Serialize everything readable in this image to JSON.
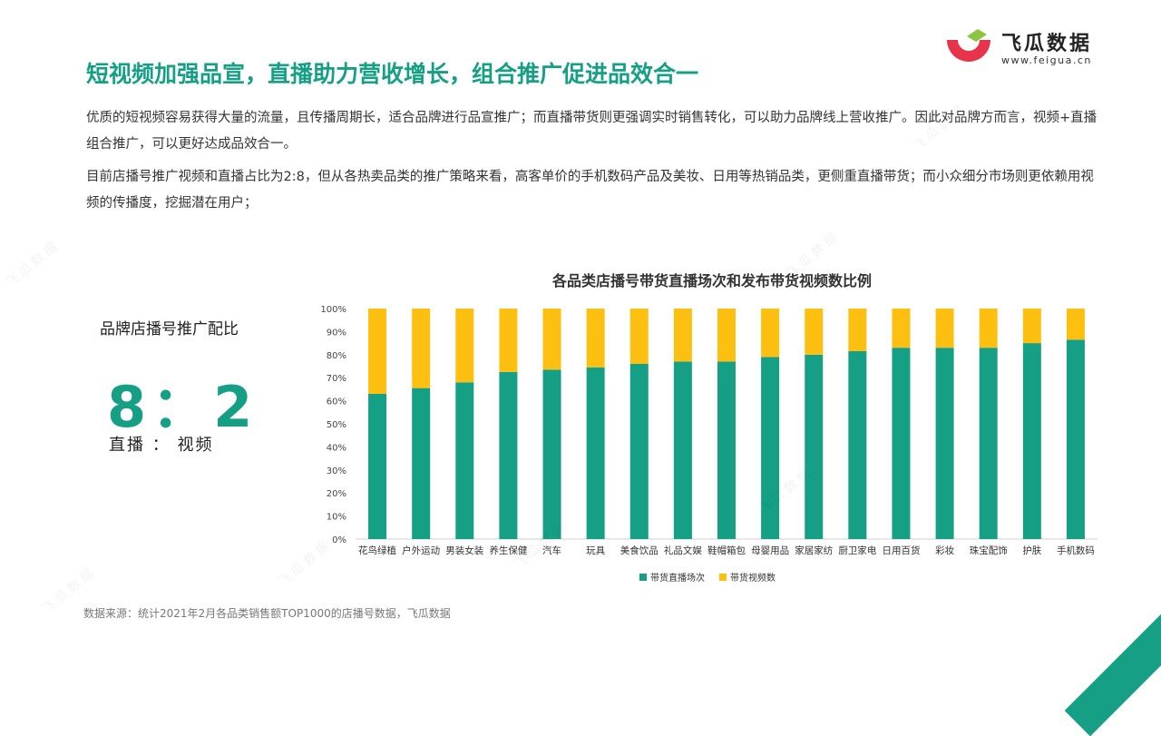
{
  "logo": {
    "name": "飞瓜数据",
    "url": "www.feigua.cn",
    "colors": {
      "red": "#E8344A",
      "green": "#8CC63F"
    }
  },
  "title": "短视频加强品宣，直播助力营收增长，组合推广促进品效合一",
  "paragraphs": [
    "优质的短视频容易获得大量的流量，且传播周期长，适合品牌进行品宣推广；而直播带货则更强调实时销售转化，可以助力品牌线上营收推广。因此对品牌方而言，视频+直播组合推广，可以更好达成品效合一。",
    "目前店播号推广视频和直播占比为2:8，但从各热卖品类的推广策略来看，高客单价的手机数码产品及美妆、日用等热销品类，更侧重直播带货；而小众细分市场则更依赖用视频的传播度，挖掘潜在用户；"
  ],
  "ratio": {
    "label": "品牌店播号推广配比",
    "value": "8：2",
    "sub": "直播 ： 视频"
  },
  "footnote": "数据来源：统计2021年2月各品类销售额TOP1000的店播号数据，飞瓜数据",
  "watermark": "飞瓜数据",
  "colors": {
    "accent": "#15A085",
    "series_live": "#15A085",
    "series_video": "#FDC010"
  },
  "chart_data": {
    "type": "bar",
    "stacked": true,
    "title": "各品类店播号带货直播场次和发布带货视频数比例",
    "categories": [
      "花鸟绿植",
      "户外运动",
      "男装女装",
      "养生保健",
      "汽车",
      "玩具",
      "美食饮品",
      "礼品文娱",
      "鞋帽箱包",
      "母婴用品",
      "家居家纺",
      "厨卫家电",
      "日用百货",
      "彩妆",
      "珠宝配饰",
      "护肤",
      "手机数码"
    ],
    "series": [
      {
        "name": "带货直播场次",
        "color": "#15A085",
        "values": [
          63,
          65.5,
          68,
          72.5,
          73.5,
          74.5,
          76,
          77,
          77,
          79,
          80,
          81.5,
          83,
          83,
          83,
          85,
          86.5
        ]
      },
      {
        "name": "带货视频数",
        "color": "#FDC010",
        "values": [
          37,
          34.5,
          32,
          27.5,
          26.5,
          25.5,
          24,
          23,
          23,
          21,
          20,
          18.5,
          17,
          17,
          17,
          15,
          13.5
        ]
      }
    ],
    "yticks": [
      "0%",
      "10%",
      "20%",
      "30%",
      "40%",
      "50%",
      "60%",
      "70%",
      "80%",
      "90%",
      "100%"
    ],
    "ylim": [
      0,
      100
    ],
    "legend": "bottom",
    "grid": false
  }
}
